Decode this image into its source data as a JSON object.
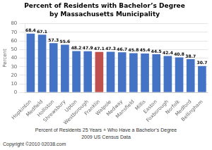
{
  "chart_data": {
    "type": "bar",
    "title": "Percent of Residents with Bachelor’s Degree",
    "subtitle": "by Massachusetts Municipality",
    "categories": [
      "Hopkinton",
      "Medfield",
      "Holliston",
      "Shrewsbury",
      "Upton",
      "Westborough",
      "Franklin",
      "Walpole",
      "Medway",
      "Mansfield",
      "Millis",
      "Easton",
      "Foxborough",
      "Norfolk",
      "Medford",
      "Bellingham"
    ],
    "values": [
      68.4,
      67.1,
      57.3,
      55.6,
      48.2,
      47.9,
      47.1,
      47.3,
      46.7,
      45.8,
      45.4,
      44.5,
      42.4,
      40.8,
      38.7,
      30.7
    ],
    "colors": [
      "#4472C4",
      "#4472C4",
      "#4472C4",
      "#4472C4",
      "#4472C4",
      "#4472C4",
      "#C0504D",
      "#4472C4",
      "#4472C4",
      "#4472C4",
      "#4472C4",
      "#4472C4",
      "#4472C4",
      "#4472C4",
      "#4472C4",
      "#4472C4"
    ],
    "ylabel": "Percent",
    "ylim": [
      0,
      80
    ],
    "yticks": [
      0,
      10,
      20,
      30,
      40,
      50,
      60,
      70,
      80
    ],
    "grid": true,
    "data_labels": true,
    "annotations": [
      "Percent of Residents 25 Years + Who Have a Bachelor’s Degree",
      "2009 US Census Data",
      "Copyright ©2010 02038.com"
    ]
  }
}
